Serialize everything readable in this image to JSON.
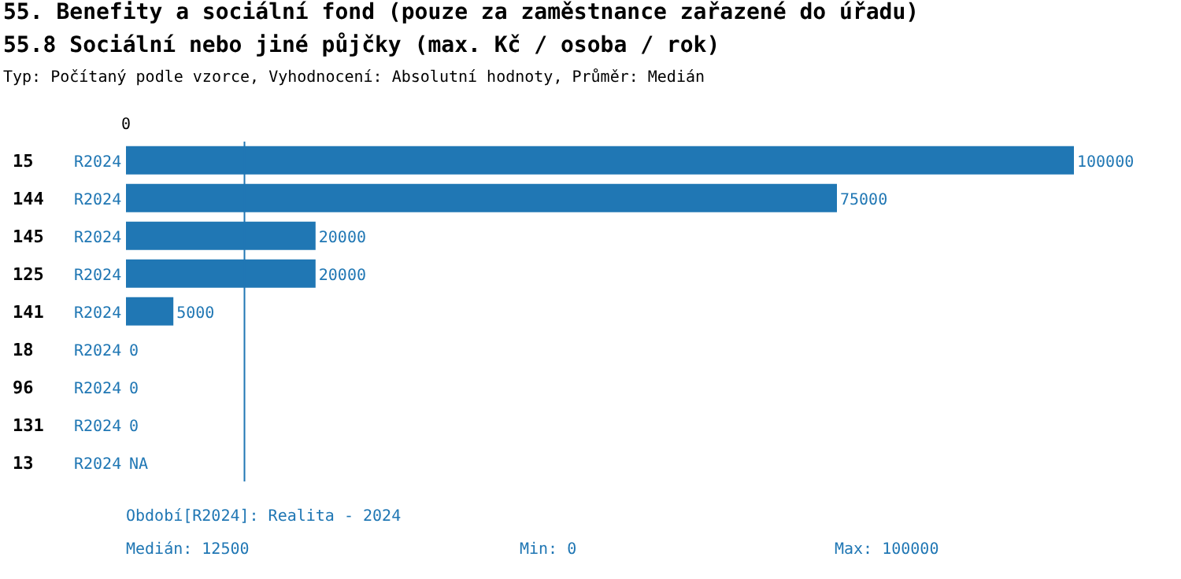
{
  "chart_data": {
    "type": "bar",
    "orientation": "horizontal",
    "title": "55. Benefity a sociální fond (pouze za zaměstnance zařazené do úřadu)",
    "subtitle": "55.8 Sociální nebo jiné půjčky (max. Kč / osoba / rok)",
    "annotations": [
      "Typ: Počítaný podle vzorce, Vyhodnocení: Absolutní hodnoty, Průměr: Medián",
      "Období[R2024]: Realita - 2024",
      "Medián: 12500",
      "Min: 0",
      "Max: 100000",
      "0"
    ],
    "categories": [
      "15",
      "144",
      "145",
      "125",
      "141",
      "18",
      "96",
      "131",
      "13"
    ],
    "series": [
      {
        "name": "R2024",
        "color": "#2077b4",
        "values": [
          100000,
          75000,
          20000,
          20000,
          5000,
          0,
          0,
          0,
          null
        ],
        "value_labels": [
          "100000",
          "75000",
          "20000",
          "20000",
          "5000",
          "0",
          "0",
          "0",
          "NA"
        ]
      }
    ],
    "ref_lines": [
      {
        "axis": "x",
        "value": 12500,
        "color": "#2077b4"
      }
    ],
    "grid": false
  }
}
